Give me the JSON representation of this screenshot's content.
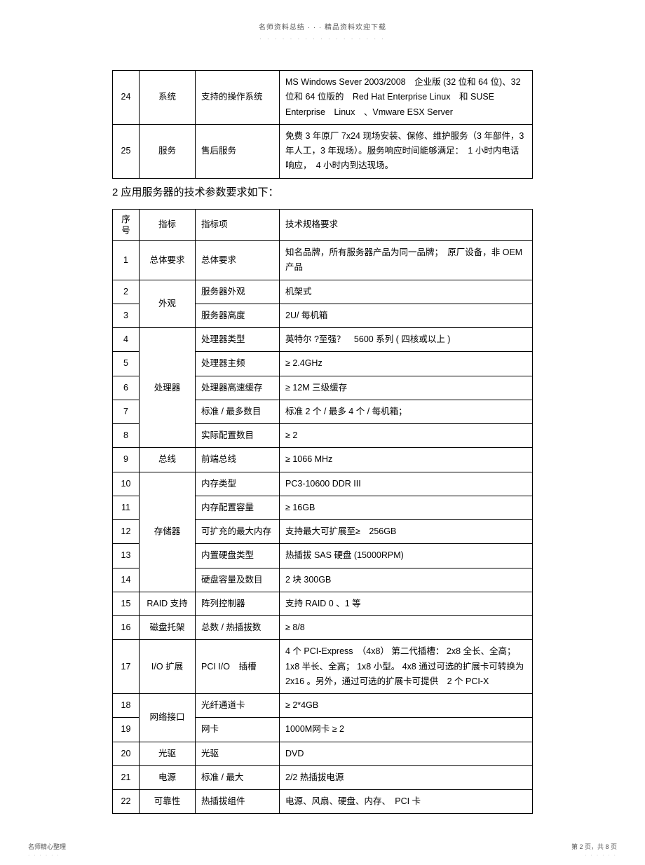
{
  "header": {
    "title": "名师资料总结 · · · 精品资料欢迎下载",
    "dots": "· · · · · · · · · · · · · · · · ·"
  },
  "table1": {
    "rows": [
      {
        "seq": "24",
        "cat": "系统",
        "item": "支持的操作系统",
        "spec": "MS Windows Sever 2003/2008　企业版 (32 位和 64 位)、32 位和 64 位版的　Red Hat Enterprise Linux　和 SUSE Enterprise　Linux　、Vmware ESX Server"
      },
      {
        "seq": "25",
        "cat": "服务",
        "item": "售后服务",
        "spec": "免费 3 年原厂 7x24 现场安装、保修、维护服务（3 年部件，3 年人工，3 年现场）。服务响应时间能够满足：　1 小时内电话响应，　4 小时内到达现场。"
      }
    ]
  },
  "section2": "2 应用服务器的技术参数要求如下：",
  "table2": {
    "header": {
      "seq": "序 号",
      "cat": "指标",
      "item": "指标项",
      "spec": "技术规格要求"
    },
    "groups": [
      {
        "cat": "总体要求",
        "rows": [
          {
            "seq": "1",
            "item": "总体要求",
            "spec": "知名品牌，所有服务器产品为同一品牌；　原厂设备，非 OEM产品"
          }
        ]
      },
      {
        "cat": "外观",
        "rows": [
          {
            "seq": "2",
            "item": "服务器外观",
            "spec": "机架式"
          },
          {
            "seq": "3",
            "item": "服务器高度",
            "spec": "2U/ 每机箱"
          }
        ]
      },
      {
        "cat": "处理器",
        "rows": [
          {
            "seq": "4",
            "item": "处理器类型",
            "spec": "英特尔 ?至强？　5600 系列 ( 四核或以上 )"
          },
          {
            "seq": "5",
            "item": "处理器主频",
            "spec": "≥ 2.4GHz"
          },
          {
            "seq": "6",
            "item": "处理器高速缓存",
            "spec": "≥ 12M 三级缓存"
          },
          {
            "seq": "7",
            "item": "标准 / 最多数目",
            "spec": "标准 2 个 / 最多 4 个 / 每机箱；"
          },
          {
            "seq": "8",
            "item": "实际配置数目",
            "spec": "≥ 2"
          }
        ]
      },
      {
        "cat": "总线",
        "rows": [
          {
            "seq": "9",
            "item": "前端总线",
            "spec": "≥ 1066 MHz"
          }
        ]
      },
      {
        "cat": "存储器",
        "rows": [
          {
            "seq": "10",
            "item": "内存类型",
            "spec": "PC3-10600 DDR III"
          },
          {
            "seq": "11",
            "item": "内存配置容量",
            "spec": "≥ 16GB"
          },
          {
            "seq": "12",
            "item": "可扩充的最大内存",
            "spec": "支持最大可扩展至≥　256GB"
          },
          {
            "seq": "13",
            "item": "内置硬盘类型",
            "spec": "热插拔 SAS 硬盘 (15000RPM)"
          },
          {
            "seq": "14",
            "item": "硬盘容量及数目",
            "spec": "2 块 300GB"
          }
        ]
      },
      {
        "cat": "RAID 支持",
        "rows": [
          {
            "seq": "15",
            "item": "阵列控制器",
            "spec": "支持 RAID 0 、1 等"
          }
        ]
      },
      {
        "cat": "磁盘托架",
        "rows": [
          {
            "seq": "16",
            "item": "总数 / 热插拔数",
            "spec": "≥ 8/8"
          }
        ]
      },
      {
        "cat": "I/O 扩展",
        "rows": [
          {
            "seq": "17",
            "item": "PCI I/O　插槽",
            "spec": "4 个 PCI-Express　（4x8） 第二代插槽： 2x8 全长、全高； 1x8 半长、全高； 1x8 小型。 4x8 通过可选的扩展卡可转换为　2x16 。另外，通过可选的扩展卡可提供　2 个 PCI-X"
          }
        ]
      },
      {
        "cat": "网络接口",
        "rows": [
          {
            "seq": "18",
            "item": "光纤通道卡",
            "spec": "≥ 2*4GB"
          },
          {
            "seq": "19",
            "item": "网卡",
            "spec": "1000M网卡 ≥ 2"
          }
        ]
      },
      {
        "cat": "光驱",
        "rows": [
          {
            "seq": "20",
            "item": "光驱",
            "spec": "DVD"
          }
        ]
      },
      {
        "cat": "电源",
        "rows": [
          {
            "seq": "21",
            "item": "标准 / 最大",
            "spec": "2/2 热插拔电源"
          }
        ]
      },
      {
        "cat": "可靠性",
        "rows": [
          {
            "seq": "22",
            "item": "热插拔组件",
            "spec": "电源、风扇、硬盘、内存、　PCI 卡"
          }
        ]
      }
    ]
  },
  "footer": {
    "left": "名师精心整理",
    "right": "第 2 页，共 8 页",
    "dots": "· · · · · ·"
  }
}
